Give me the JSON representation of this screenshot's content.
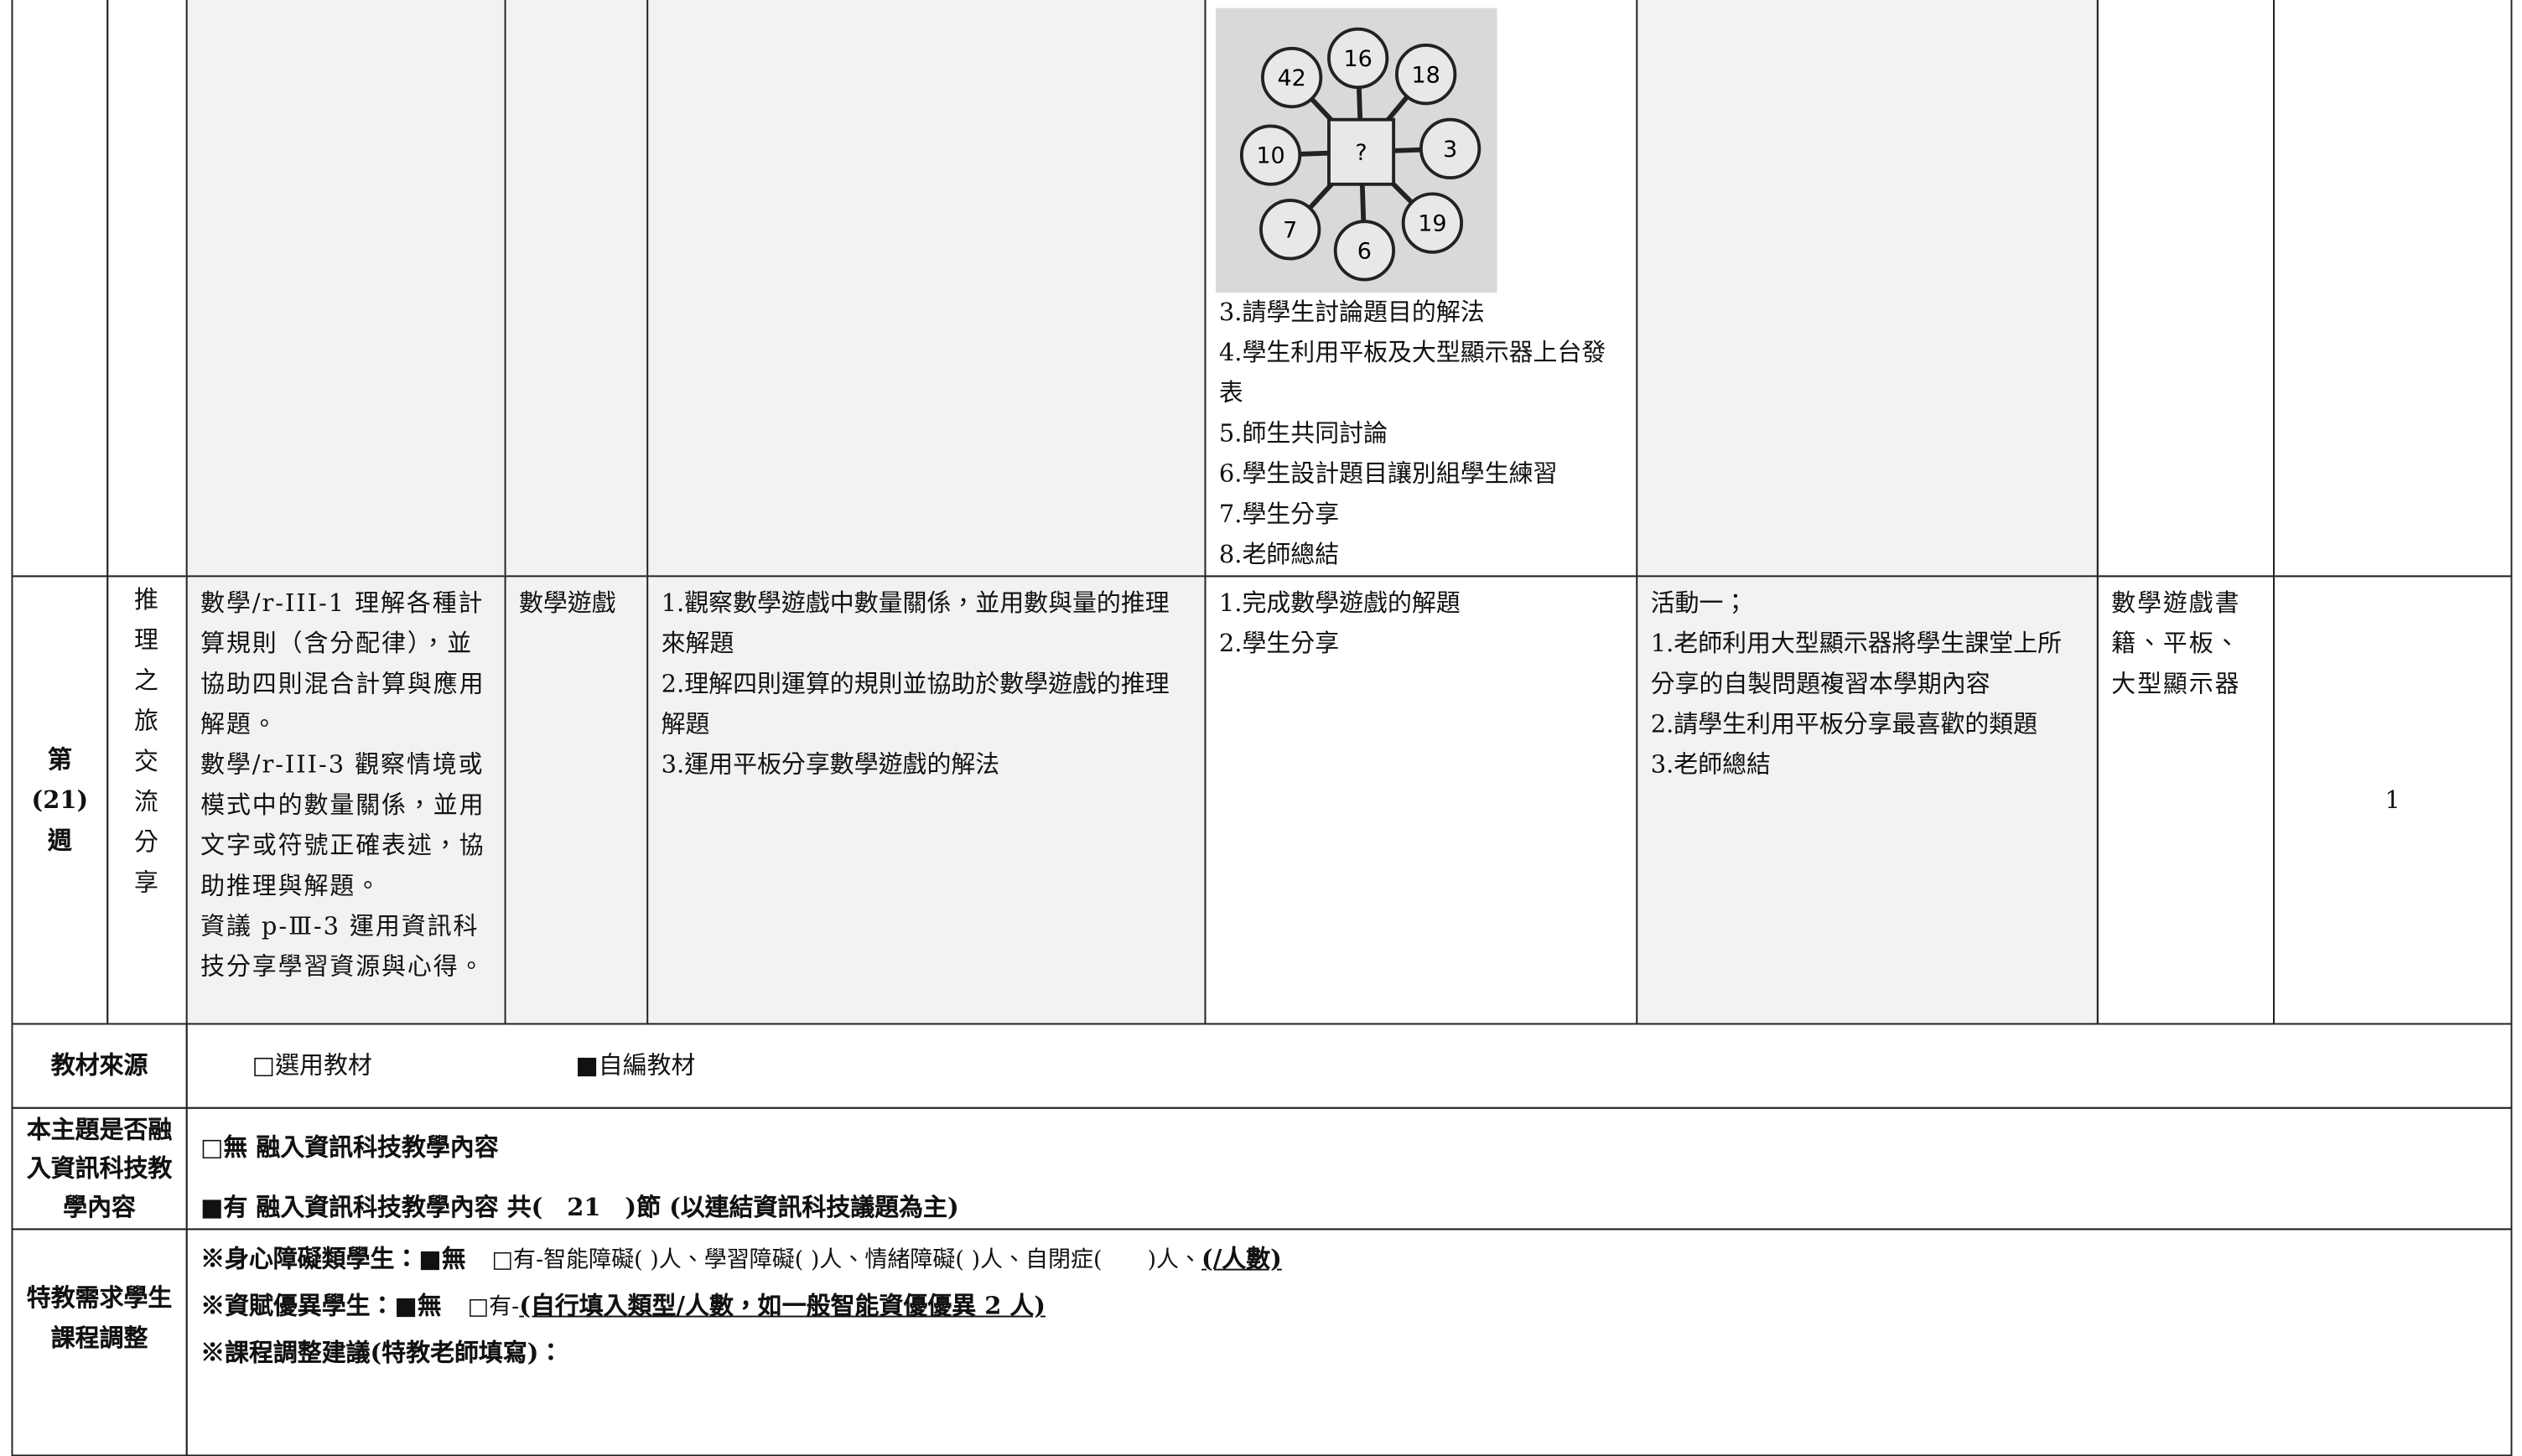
{
  "prev_row": {
    "figure_labels": [
      "42",
      "16",
      "18",
      "10",
      "?",
      "3",
      "7",
      "6",
      "19"
    ],
    "activities": [
      "3.請學生討論題目的解法",
      "4.學生利用平板及大型顯示器上台發表",
      "5.師生共同討論",
      "6.學生設計題目讓別組學生練習",
      "7.學生分享",
      "8.老師總結"
    ]
  },
  "week_row": {
    "week": [
      "第",
      "(21)",
      "週"
    ],
    "unit": "推理之旅交流分享",
    "competencies": [
      "數學/r-III-1 理解各種計算規則（含分配律），並協助四則混合計算與應用解題。",
      "數學/r-III-3 觀察情境或模式中的數量關係，並用文字或符號正確表述，協助推理與解題。",
      "資議 p-Ⅲ-3 運用資訊科技分享學習資源與心得。"
    ],
    "method": "數學遊戲",
    "objectives": [
      "1.觀察數學遊戲中數量關係，並用數與量的推理來解題",
      "2.理解四則運算的規則並協助於數學遊戲的推理解題",
      "3.運用平板分享數學遊戲的解法"
    ],
    "assessment": [
      "1.完成數學遊戲的解題",
      "2.學生分享"
    ],
    "activities": [
      "活動一；",
      "1.老師利用大型顯示器將學生課堂上所分享的自製問題複習本學期內容",
      "2.請學生利用平板分享最喜歡的類題",
      "3.老師總結"
    ],
    "resources": "數學遊戲書籍、平板、大型顯示器",
    "periods": "1"
  },
  "materials": {
    "label": "教材來源",
    "option1": "□選用教材",
    "option2": "■自編教材"
  },
  "it": {
    "label": "本主題是否融入資訊科技教學內容",
    "no": "□無 融入資訊科技教學內容",
    "yes": "■有 融入資訊科技教學內容 共(　21　)節 (以連結資訊科技議題為主)"
  },
  "special": {
    "label": "特教需求學生課程調整",
    "line1": {
      "head": "※身心障礙類學生：■無",
      "rest": "□有-智能障礙( )人、學習障礙( )人、情緒障礙( )人、自閉症(　　)人、",
      "link": "(/人數)"
    },
    "line2": {
      "head": "※資賦優異學生：■無",
      "rest": "□有-",
      "link": "(自行填入類型/人數，如一般智能資優優異 2 人)"
    },
    "line3": "※課程調整建議(特教老師填寫)："
  }
}
